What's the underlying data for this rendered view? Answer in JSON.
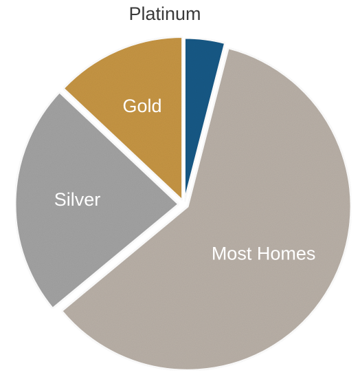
{
  "chart_data": {
    "type": "pie",
    "title": "",
    "slices": [
      {
        "label": "Platinum",
        "value": 4,
        "color": "#1f5a86",
        "label_position": "outside"
      },
      {
        "label": "Most Homes",
        "value": 60,
        "color": "#b9b0a7",
        "label_position": "inside"
      },
      {
        "label": "Silver",
        "value": 23,
        "color": "#a3a3a3",
        "label_position": "inside"
      },
      {
        "label": "Gold",
        "value": 13,
        "color": "#c69545",
        "label_position": "inside"
      }
    ],
    "start_angle_deg": 0,
    "direction": "clockwise",
    "legend": "none"
  }
}
